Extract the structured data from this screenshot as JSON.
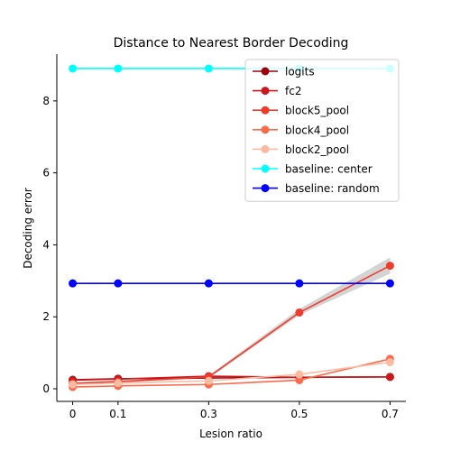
{
  "chart_data": {
    "type": "line",
    "title": "Distance to Nearest Border Decoding",
    "xlabel": "Lesion ratio",
    "ylabel": "Decoding error",
    "x": [
      0,
      0.1,
      0.3,
      0.5,
      0.7
    ],
    "x_tick_labels": [
      "0",
      "0.1",
      "0.3",
      "0.5",
      "0.7"
    ],
    "y_ticks": [
      0,
      2,
      4,
      6,
      8
    ],
    "xlim": [
      -0.035,
      0.735
    ],
    "ylim": [
      -0.35,
      9.3
    ],
    "grid": false,
    "legend_position": "top-right",
    "series": [
      {
        "name": "logits",
        "color": "#99000d",
        "values": [
          0.25,
          0.28,
          0.3,
          0.32,
          0.33
        ]
      },
      {
        "name": "fc2",
        "color": "#cb181d",
        "values": [
          0.24,
          0.27,
          0.35,
          0.32,
          0.33
        ]
      },
      {
        "name": "block5_pool",
        "color": "#ef3b2c",
        "values": [
          0.15,
          0.2,
          0.33,
          2.12,
          3.42
        ],
        "ci_lower": [
          0.12,
          0.17,
          0.29,
          2.05,
          3.2
        ],
        "ci_upper": [
          0.18,
          0.23,
          0.37,
          2.22,
          3.65
        ]
      },
      {
        "name": "block4_pool",
        "color": "#fb6a4a",
        "values": [
          0.05,
          0.08,
          0.12,
          0.24,
          0.83
        ]
      },
      {
        "name": "block2_pool",
        "color": "#fcbba1",
        "values": [
          0.12,
          0.16,
          0.22,
          0.4,
          0.74
        ]
      },
      {
        "name": "baseline: center",
        "color": "#00ffff",
        "values": [
          8.9,
          8.9,
          8.9,
          8.9,
          8.9
        ]
      },
      {
        "name": "baseline: random",
        "color": "#0000ff",
        "values": [
          2.93,
          2.93,
          2.93,
          2.93,
          2.93
        ]
      }
    ]
  }
}
